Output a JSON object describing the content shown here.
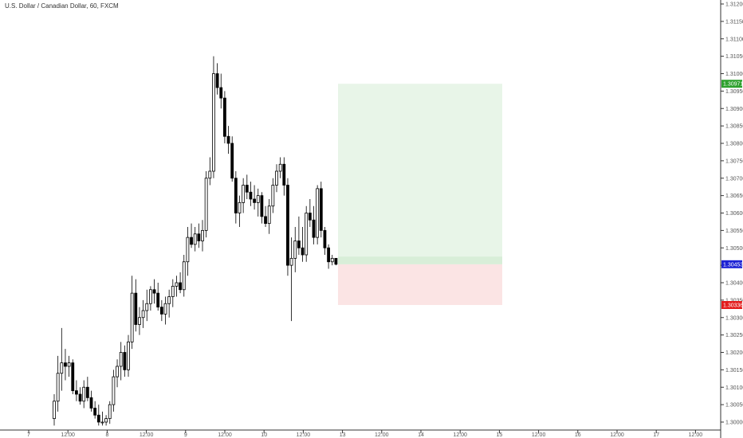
{
  "chart_data": {
    "type": "candlestick",
    "title": "U.S. Dollar / Canadian Dollar, 60, FXCM",
    "y_ticks": [
      "1.31200",
      "1.31150",
      "1.31100",
      "1.31050",
      "1.31000",
      "1.30950",
      "1.30900",
      "1.30850",
      "1.30800",
      "1.30750",
      "1.30700",
      "1.30650",
      "1.30600",
      "1.30550",
      "1.30500",
      "1.30450",
      "1.30400",
      "1.30350",
      "1.30300",
      "1.30250",
      "1.30200",
      "1.30150",
      "1.30100",
      "1.30050",
      "1.30000"
    ],
    "ylim": [
      1.2999,
      1.3121
    ],
    "x_ticks": [
      "7",
      "12:00",
      "8",
      "12:00",
      "9",
      "12:00",
      "10",
      "12:00",
      "13",
      "12:00",
      "14",
      "12:00",
      "15",
      "12:00",
      "16",
      "12:00",
      "17",
      "12:00"
    ],
    "price_badges": [
      {
        "label": "1.30971",
        "value": 1.30971,
        "color": "#2ea12e"
      },
      {
        "label": "1.30453",
        "value": 1.30453,
        "color": "#1c22d4"
      },
      {
        "label": "1.30336",
        "value": 1.30336,
        "color": "#e31d1d"
      }
    ],
    "position": {
      "type": "long",
      "target": 1.30971,
      "entry": 1.30453,
      "stop": 1.30336,
      "profit_color": "#e8f5e8",
      "loss_color": "#fbe4e4"
    },
    "candles": [
      {
        "o": 1.3001,
        "h": 1.3008,
        "l": 1.2999,
        "c": 1.3006
      },
      {
        "o": 1.3006,
        "h": 1.3019,
        "l": 1.3003,
        "c": 1.3014
      },
      {
        "o": 1.3014,
        "h": 1.3027,
        "l": 1.3009,
        "c": 1.3017
      },
      {
        "o": 1.3017,
        "h": 1.3021,
        "l": 1.3012,
        "c": 1.3016
      },
      {
        "o": 1.3016,
        "h": 1.3019,
        "l": 1.3013,
        "c": 1.3017
      },
      {
        "o": 1.3017,
        "h": 1.3018,
        "l": 1.3008,
        "c": 1.3009
      },
      {
        "o": 1.3009,
        "h": 1.3012,
        "l": 1.3006,
        "c": 1.3008
      },
      {
        "o": 1.3008,
        "h": 1.301,
        "l": 1.3005,
        "c": 1.3006
      },
      {
        "o": 1.3006,
        "h": 1.3012,
        "l": 1.3004,
        "c": 1.301
      },
      {
        "o": 1.301,
        "h": 1.3013,
        "l": 1.3006,
        "c": 1.3007
      },
      {
        "o": 1.3007,
        "h": 1.3009,
        "l": 1.3003,
        "c": 1.3004
      },
      {
        "o": 1.3004,
        "h": 1.3006,
        "l": 1.3001,
        "c": 1.3002
      },
      {
        "o": 1.3002,
        "h": 1.3005,
        "l": 1.2999,
        "c": 1.3
      },
      {
        "o": 1.3,
        "h": 1.3003,
        "l": 1.2999,
        "c": 1.3
      },
      {
        "o": 1.3,
        "h": 1.3002,
        "l": 1.2999,
        "c": 1.3001
      },
      {
        "o": 1.3001,
        "h": 1.3006,
        "l": 1.29995,
        "c": 1.3005
      },
      {
        "o": 1.3005,
        "h": 1.3015,
        "l": 1.3003,
        "c": 1.3013
      },
      {
        "o": 1.3013,
        "h": 1.3018,
        "l": 1.301,
        "c": 1.3016
      },
      {
        "o": 1.3016,
        "h": 1.3023,
        "l": 1.3012,
        "c": 1.302
      },
      {
        "o": 1.302,
        "h": 1.3022,
        "l": 1.3013,
        "c": 1.3015
      },
      {
        "o": 1.3015,
        "h": 1.3025,
        "l": 1.3013,
        "c": 1.3023
      },
      {
        "o": 1.3023,
        "h": 1.3042,
        "l": 1.3021,
        "c": 1.3037
      },
      {
        "o": 1.3037,
        "h": 1.3041,
        "l": 1.3026,
        "c": 1.3028
      },
      {
        "o": 1.3028,
        "h": 1.3033,
        "l": 1.3025,
        "c": 1.303
      },
      {
        "o": 1.303,
        "h": 1.3035,
        "l": 1.3027,
        "c": 1.3032
      },
      {
        "o": 1.3032,
        "h": 1.3038,
        "l": 1.3029,
        "c": 1.3034
      },
      {
        "o": 1.3034,
        "h": 1.3039,
        "l": 1.3032,
        "c": 1.3038
      },
      {
        "o": 1.3038,
        "h": 1.3041,
        "l": 1.3034,
        "c": 1.3037
      },
      {
        "o": 1.3037,
        "h": 1.304,
        "l": 1.3032,
        "c": 1.3033
      },
      {
        "o": 1.3033,
        "h": 1.3035,
        "l": 1.3029,
        "c": 1.3031
      },
      {
        "o": 1.3031,
        "h": 1.3036,
        "l": 1.3028,
        "c": 1.3034
      },
      {
        "o": 1.3034,
        "h": 1.3038,
        "l": 1.303,
        "c": 1.3036
      },
      {
        "o": 1.3036,
        "h": 1.3041,
        "l": 1.3033,
        "c": 1.3039
      },
      {
        "o": 1.3039,
        "h": 1.3042,
        "l": 1.3036,
        "c": 1.304
      },
      {
        "o": 1.304,
        "h": 1.3043,
        "l": 1.3037,
        "c": 1.3038
      },
      {
        "o": 1.3038,
        "h": 1.3048,
        "l": 1.3036,
        "c": 1.3046
      },
      {
        "o": 1.3046,
        "h": 1.3056,
        "l": 1.3042,
        "c": 1.3053
      },
      {
        "o": 1.3053,
        "h": 1.3057,
        "l": 1.305,
        "c": 1.3051
      },
      {
        "o": 1.3051,
        "h": 1.3056,
        "l": 1.3049,
        "c": 1.3054
      },
      {
        "o": 1.3054,
        "h": 1.3057,
        "l": 1.305,
        "c": 1.3052
      },
      {
        "o": 1.3052,
        "h": 1.3058,
        "l": 1.3049,
        "c": 1.3055
      },
      {
        "o": 1.3055,
        "h": 1.3072,
        "l": 1.3053,
        "c": 1.307
      },
      {
        "o": 1.307,
        "h": 1.3076,
        "l": 1.3068,
        "c": 1.3072
      },
      {
        "o": 1.3072,
        "h": 1.3105,
        "l": 1.307,
        "c": 1.31
      },
      {
        "o": 1.31,
        "h": 1.3103,
        "l": 1.3094,
        "c": 1.3096
      },
      {
        "o": 1.3096,
        "h": 1.31,
        "l": 1.309,
        "c": 1.3093
      },
      {
        "o": 1.3093,
        "h": 1.3095,
        "l": 1.308,
        "c": 1.3082
      },
      {
        "o": 1.3082,
        "h": 1.3085,
        "l": 1.3077,
        "c": 1.308
      },
      {
        "o": 1.308,
        "h": 1.3082,
        "l": 1.3069,
        "c": 1.307
      },
      {
        "o": 1.307,
        "h": 1.3072,
        "l": 1.3057,
        "c": 1.306
      },
      {
        "o": 1.306,
        "h": 1.3065,
        "l": 1.3056,
        "c": 1.3063
      },
      {
        "o": 1.3063,
        "h": 1.307,
        "l": 1.306,
        "c": 1.3068
      },
      {
        "o": 1.3068,
        "h": 1.3071,
        "l": 1.3064,
        "c": 1.3066
      },
      {
        "o": 1.3066,
        "h": 1.3069,
        "l": 1.3062,
        "c": 1.3064
      },
      {
        "o": 1.3064,
        "h": 1.3068,
        "l": 1.3061,
        "c": 1.3063
      },
      {
        "o": 1.3063,
        "h": 1.3067,
        "l": 1.3059,
        "c": 1.3065
      },
      {
        "o": 1.3065,
        "h": 1.3066,
        "l": 1.3057,
        "c": 1.3059
      },
      {
        "o": 1.3059,
        "h": 1.3062,
        "l": 1.3056,
        "c": 1.3057
      },
      {
        "o": 1.3057,
        "h": 1.3064,
        "l": 1.3054,
        "c": 1.3062
      },
      {
        "o": 1.3062,
        "h": 1.307,
        "l": 1.306,
        "c": 1.3068
      },
      {
        "o": 1.3068,
        "h": 1.3074,
        "l": 1.3066,
        "c": 1.3072
      },
      {
        "o": 1.3072,
        "h": 1.3076,
        "l": 1.307,
        "c": 1.3074
      },
      {
        "o": 1.3074,
        "h": 1.3076,
        "l": 1.3065,
        "c": 1.3068
      },
      {
        "o": 1.3068,
        "h": 1.307,
        "l": 1.3042,
        "c": 1.3045
      },
      {
        "o": 1.3045,
        "h": 1.3053,
        "l": 1.3029,
        "c": 1.3047
      },
      {
        "o": 1.3047,
        "h": 1.3056,
        "l": 1.3043,
        "c": 1.3052
      },
      {
        "o": 1.3052,
        "h": 1.3059,
        "l": 1.3048,
        "c": 1.305
      },
      {
        "o": 1.305,
        "h": 1.3056,
        "l": 1.3046,
        "c": 1.3048
      },
      {
        "o": 1.3048,
        "h": 1.3062,
        "l": 1.3046,
        "c": 1.306
      },
      {
        "o": 1.306,
        "h": 1.3064,
        "l": 1.3056,
        "c": 1.3058
      },
      {
        "o": 1.3058,
        "h": 1.3062,
        "l": 1.3051,
        "c": 1.3053
      },
      {
        "o": 1.3053,
        "h": 1.3068,
        "l": 1.3051,
        "c": 1.3067
      },
      {
        "o": 1.3067,
        "h": 1.3069,
        "l": 1.3053,
        "c": 1.3055
      },
      {
        "o": 1.3055,
        "h": 1.3056,
        "l": 1.3048,
        "c": 1.305
      },
      {
        "o": 1.305,
        "h": 1.3051,
        "l": 1.3044,
        "c": 1.3046
      },
      {
        "o": 1.3046,
        "h": 1.3048,
        "l": 1.3045,
        "c": 1.3047
      },
      {
        "o": 1.3047,
        "h": 1.3047,
        "l": 1.3045,
        "c": 1.30453
      }
    ]
  }
}
